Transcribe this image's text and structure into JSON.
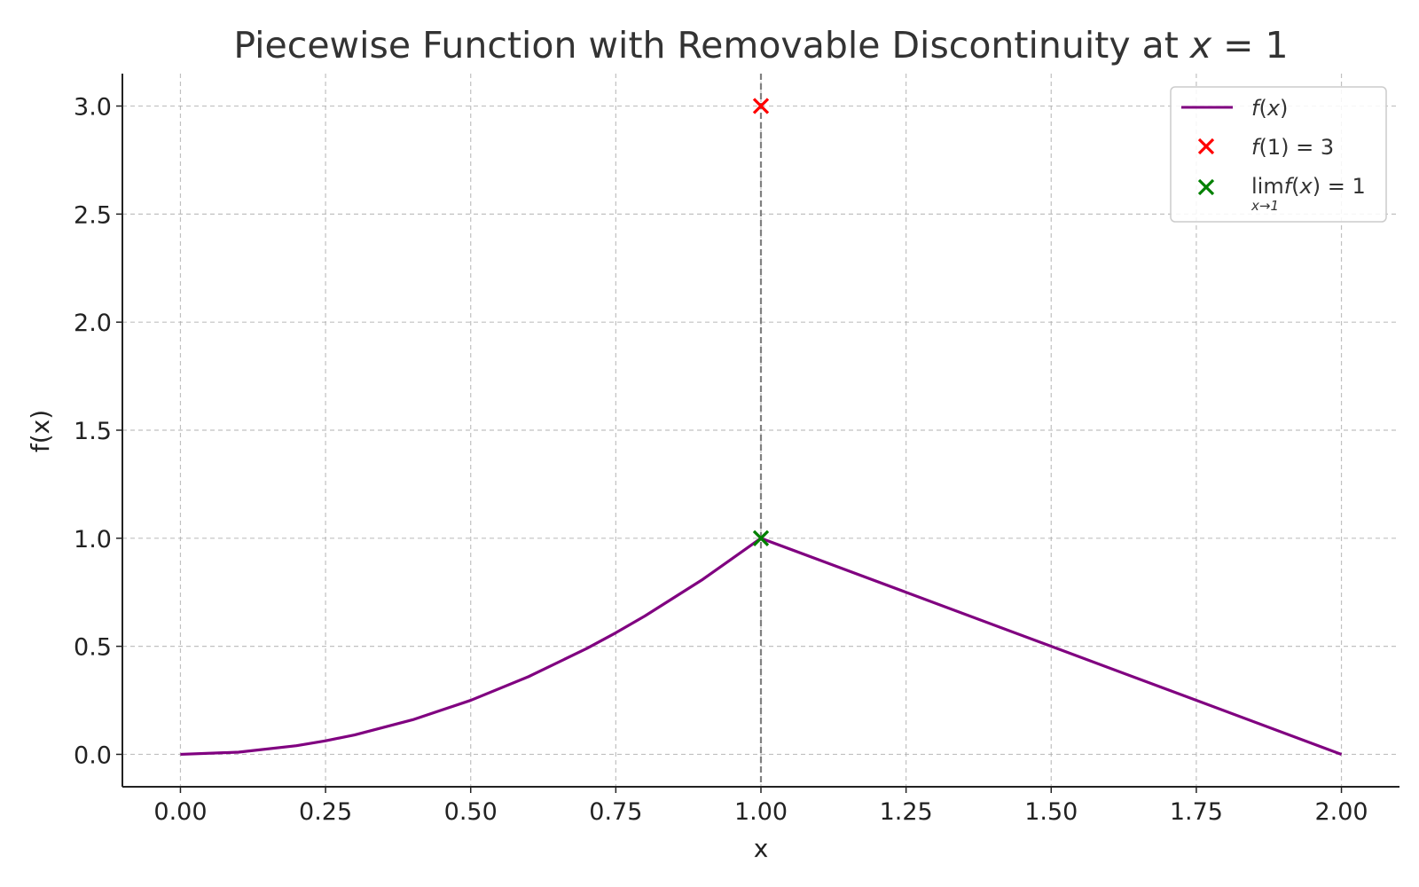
{
  "chart_data": {
    "type": "line",
    "title": "Piecewise Function with Removable Discontinuity at x = 1",
    "title_parts": {
      "text": "Piecewise Function with Removable Discontinuity at ",
      "var": "x",
      "rest": " = 1"
    },
    "xlabel": "x",
    "ylabel": "f(x)",
    "xlim": [
      -0.1,
      2.1
    ],
    "ylim": [
      -0.15,
      3.15
    ],
    "xticks": [
      0.0,
      0.25,
      0.5,
      0.75,
      1.0,
      1.25,
      1.5,
      1.75,
      2.0
    ],
    "xtick_labels": [
      "0.00",
      "0.25",
      "0.50",
      "0.75",
      "1.00",
      "1.25",
      "1.50",
      "1.75",
      "2.00"
    ],
    "yticks": [
      0.0,
      0.5,
      1.0,
      1.5,
      2.0,
      2.5,
      3.0
    ],
    "ytick_labels": [
      "0.0",
      "0.5",
      "1.0",
      "1.5",
      "2.0",
      "2.5",
      "3.0"
    ],
    "grid": true,
    "legend_position": "top-right",
    "series": [
      {
        "name": "f(x)",
        "kind": "line",
        "color": "#800080",
        "x": [
          0.0,
          0.1,
          0.2,
          0.25,
          0.3,
          0.4,
          0.5,
          0.6,
          0.7,
          0.75,
          0.8,
          0.9,
          1.0,
          1.25,
          1.5,
          1.75,
          2.0
        ],
        "y": [
          0.0,
          0.01,
          0.04,
          0.0625,
          0.09,
          0.16,
          0.25,
          0.36,
          0.49,
          0.5625,
          0.64,
          0.81,
          1.0,
          0.75,
          0.5,
          0.25,
          0.0
        ]
      },
      {
        "name": "f(1) = 3",
        "kind": "marker",
        "marker": "x",
        "color": "#ff0000",
        "x": [
          1.0
        ],
        "y": [
          3.0
        ]
      },
      {
        "name": "lim f(x) = 1",
        "kind": "marker",
        "marker": "x",
        "color": "#008000",
        "x": [
          1.0
        ],
        "y": [
          1.0
        ]
      }
    ],
    "vline": {
      "x": 1.0,
      "style": "dashed",
      "color": "#808080"
    },
    "legend": {
      "line_label": {
        "fn": "f",
        "arg": "x"
      },
      "red_label": {
        "fn": "f",
        "arg": "1",
        "eq": " = 3"
      },
      "green_label": {
        "lim": "lim",
        "fn": "f",
        "arg": "x",
        "eq": " = 1",
        "sub": "x→1"
      }
    }
  }
}
